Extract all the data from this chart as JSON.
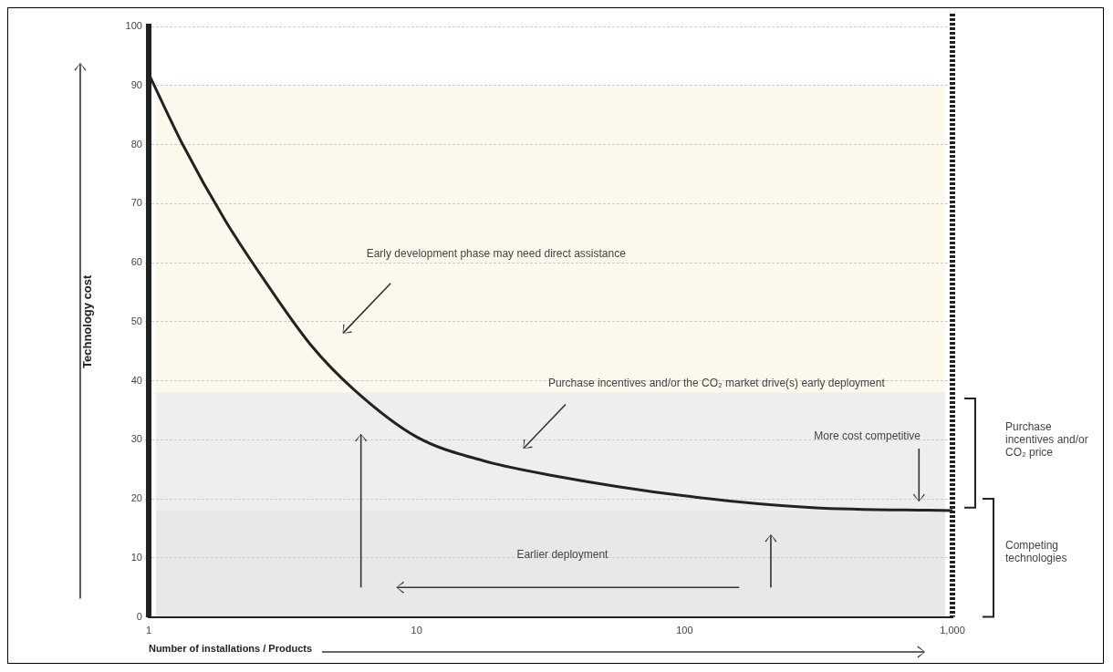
{
  "chart_data": {
    "type": "line",
    "xlabel": "Number of installations / Products",
    "ylabel": "Technology cost",
    "series": [
      {
        "color": "#222222",
        "x": [
          1,
          1.34,
          1.94,
          2.8,
          4.04,
          5.84,
          10,
          17.6,
          31.7,
          100,
          300,
          1000
        ],
        "values": [
          92,
          80,
          67,
          56,
          46,
          38.5,
          30.5,
          26.5,
          24,
          20.5,
          18.5,
          18
        ]
      }
    ],
    "xlim": [
      1,
      1000
    ],
    "xticks": [
      1,
      10,
      100,
      {
        "value": 1000,
        "label": "1,000"
      }
    ],
    "log": "x",
    "ylim": [
      0,
      100
    ],
    "yticks": [
      0,
      10,
      20,
      30,
      40,
      50,
      60,
      70,
      80,
      90,
      100
    ],
    "bands": [
      {
        "axis": "y",
        "from": 38,
        "to": 90,
        "color": "#fdf8ec"
      },
      {
        "axis": "y",
        "from": 18,
        "to": 38,
        "color": "#eeeeee"
      },
      {
        "axis": "y",
        "from": 0,
        "to": 18,
        "color": "#e8e8e8"
      }
    ],
    "annotations": [
      "Early development phase may need direct assistance",
      "Purchase incentives and/or the CO₂ market drive(s) early deployment",
      "More cost competitive",
      "Earlier deployment",
      "Purchase incentives and/or CO₂ price",
      "Competing technologies"
    ],
    "grid": "y",
    "legend": false,
    "marker": "none",
    "line_style": "solid"
  }
}
